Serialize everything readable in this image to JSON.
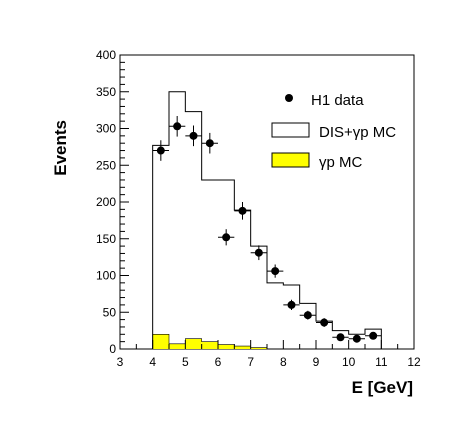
{
  "chart_data": {
    "type": "bar",
    "title": "",
    "xlabel": "E [GeV]",
    "ylabel": "Events",
    "xlim": [
      3,
      12
    ],
    "ylim": [
      0,
      400
    ],
    "xticks": [
      "3",
      "4",
      "5",
      "6",
      "7",
      "8",
      "9",
      "10",
      "11",
      "12"
    ],
    "yticks": [
      "0",
      "50",
      "100",
      "150",
      "200",
      "250",
      "300",
      "350",
      "400"
    ],
    "grid": false,
    "legend_position": "top-right",
    "bin_width": 0.5,
    "bin_left_edges": [
      4.0,
      4.5,
      5.0,
      5.5,
      6.0,
      6.5,
      7.0,
      7.5,
      8.0,
      8.5,
      9.0,
      9.5,
      10.0,
      10.5
    ],
    "series": [
      {
        "name": "H1 data",
        "kind": "points",
        "x": [
          4.25,
          4.75,
          5.25,
          5.75,
          6.25,
          6.75,
          7.25,
          7.75,
          8.25,
          8.75,
          9.25,
          9.75,
          10.25,
          10.75
        ],
        "values": [
          270,
          303,
          290,
          280,
          152,
          188,
          131,
          106,
          60,
          46,
          36,
          16,
          14,
          18
        ],
        "errors": [
          14,
          14,
          14,
          14,
          11,
          12,
          10,
          9,
          7,
          6,
          6,
          4,
          4,
          4
        ]
      },
      {
        "name": "DIS+γp MC",
        "kind": "histogram",
        "values": [
          277,
          350,
          323,
          230,
          230,
          189,
          140,
          90,
          87,
          62,
          38,
          25,
          20,
          27
        ],
        "color": "#ffffff"
      },
      {
        "name": "γp MC",
        "kind": "histogram",
        "values": [
          20,
          7,
          14,
          10,
          6,
          4,
          2,
          0,
          0,
          0,
          0,
          0,
          0,
          0
        ],
        "color": "#ffff00"
      }
    ],
    "legend": [
      "H1 data",
      "DIS+γp MC",
      "γp MC"
    ]
  }
}
